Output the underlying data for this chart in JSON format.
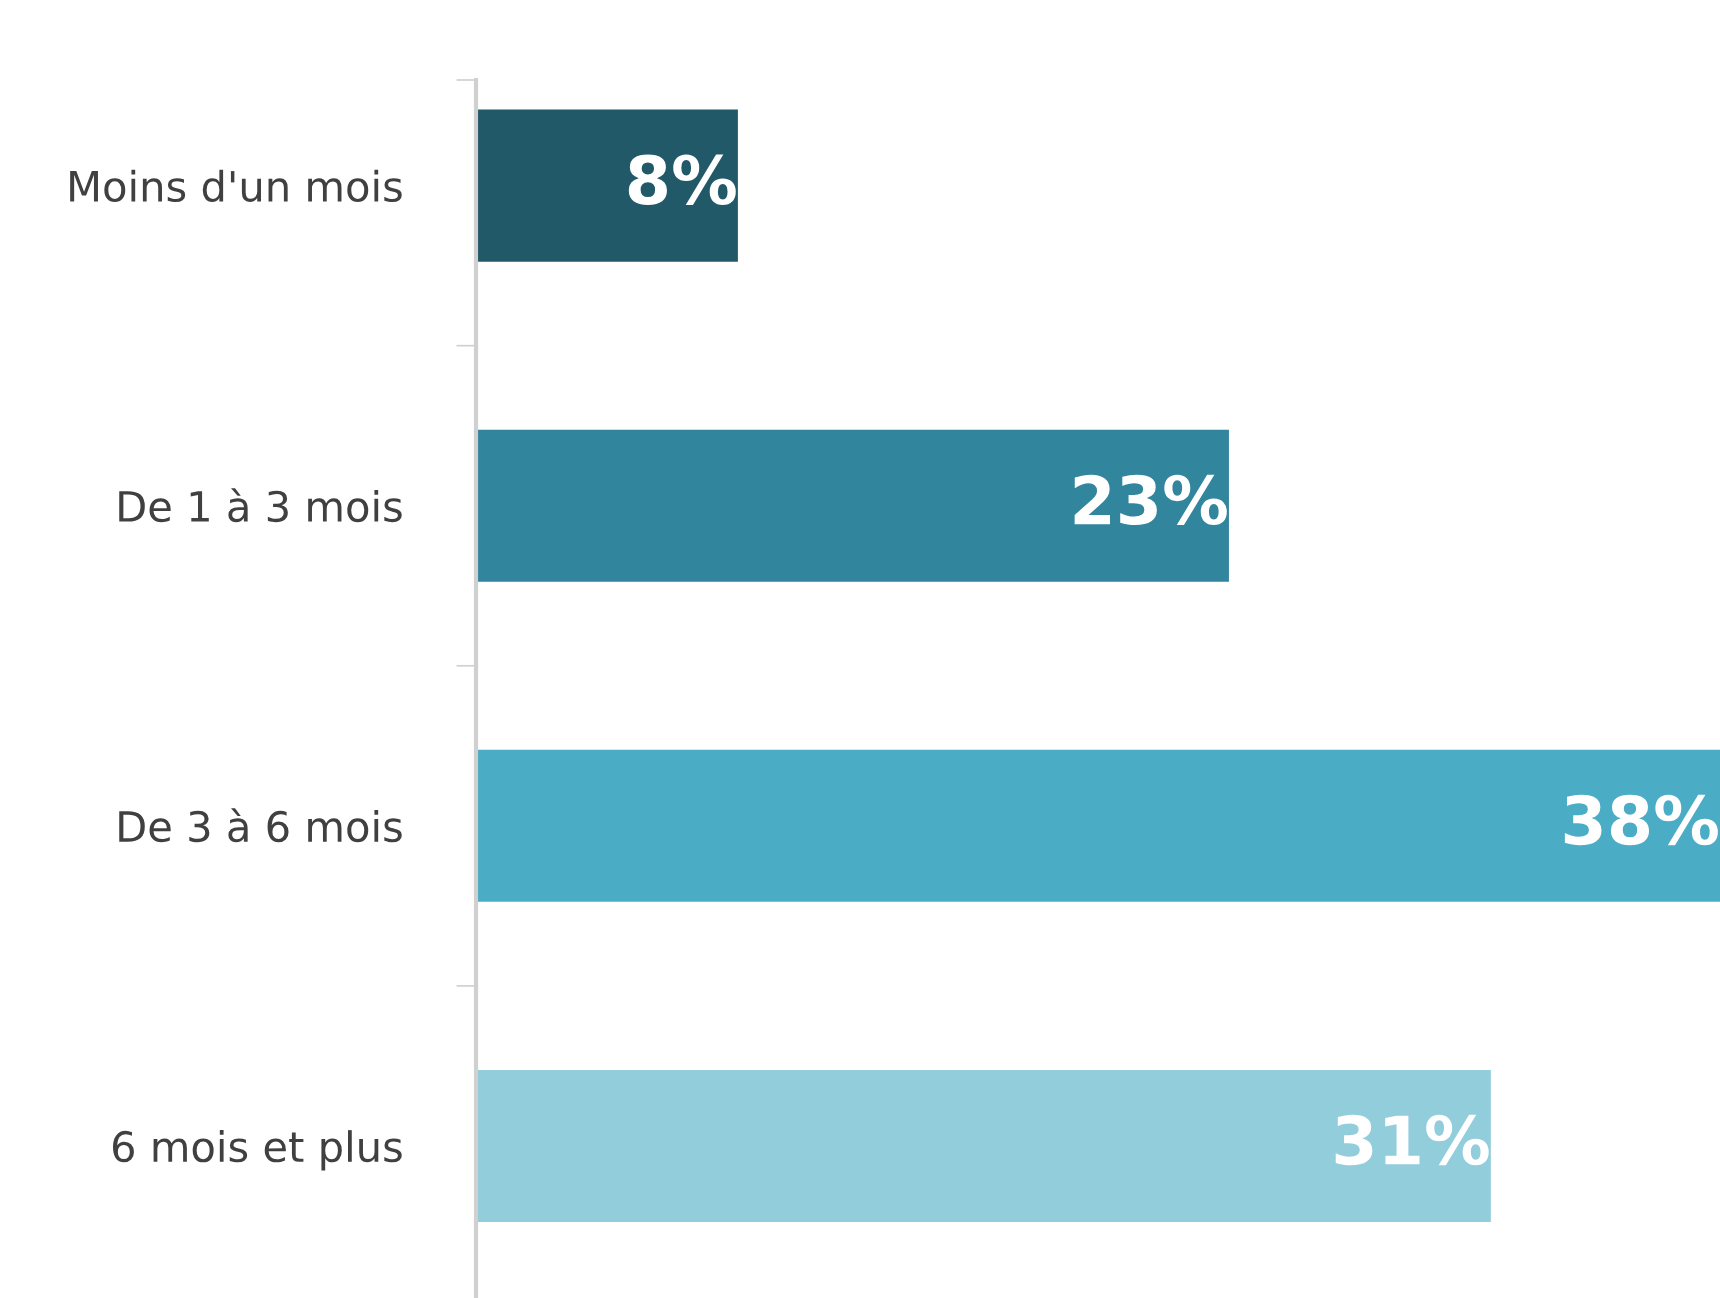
{
  "chart_data": {
    "type": "bar",
    "orientation": "horizontal",
    "categories": [
      "Moins d'un mois",
      "De 1 à 3 mois",
      "De 3 à 6 mois",
      "6 mois et plus"
    ],
    "values": [
      8,
      23,
      38,
      31
    ],
    "colors": [
      "#215968",
      "#31859c",
      "#4bacc6",
      "#92cddc"
    ],
    "value_labels": [
      "8%",
      "23%",
      "38%",
      "31%"
    ],
    "grid": false,
    "legend": false
  }
}
